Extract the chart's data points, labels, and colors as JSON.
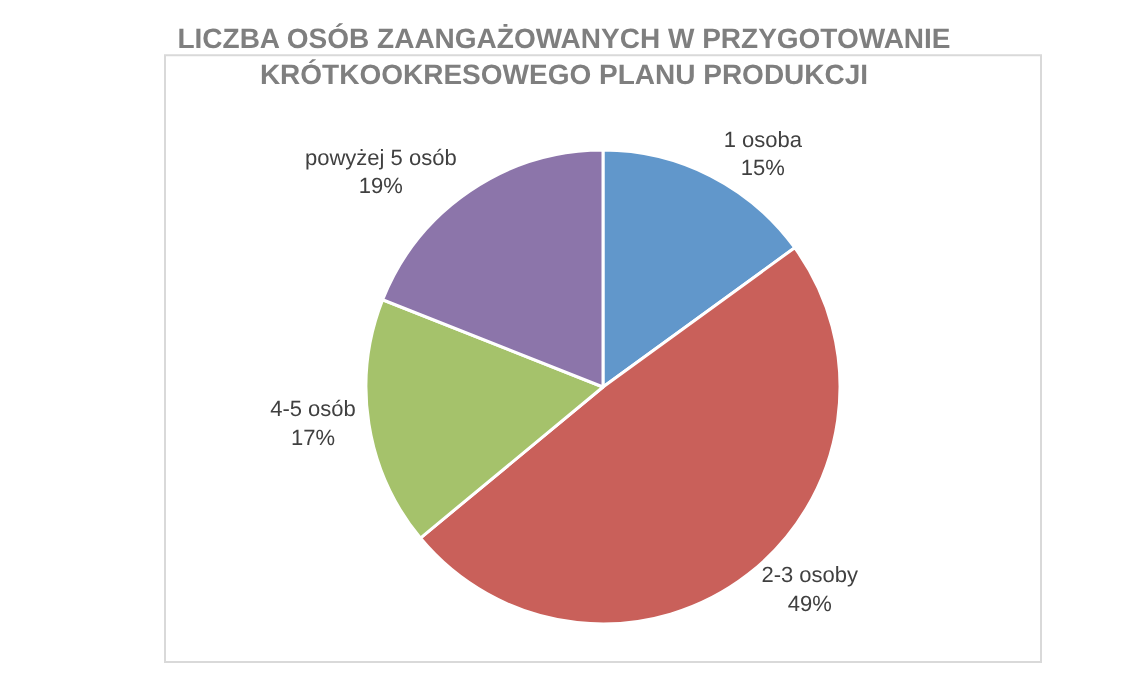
{
  "chart_data": {
    "type": "pie",
    "title": "LICZBA OSÓB ZAANGAŻOWANYCH W PRZYGOTOWANIE KRÓTKOOKRESOWEGO PLANU PRODUKCJI",
    "categories": [
      "1 osoba",
      "2-3 osoby",
      "4-5 osób",
      "powyżej 5 osób"
    ],
    "values": [
      15,
      49,
      17,
      19
    ],
    "value_labels": [
      "15%",
      "49%",
      "17%",
      "19%"
    ],
    "colors": [
      "#6197cb",
      "#c9605a",
      "#a5c26b",
      "#8c75aa"
    ],
    "legend": false
  }
}
